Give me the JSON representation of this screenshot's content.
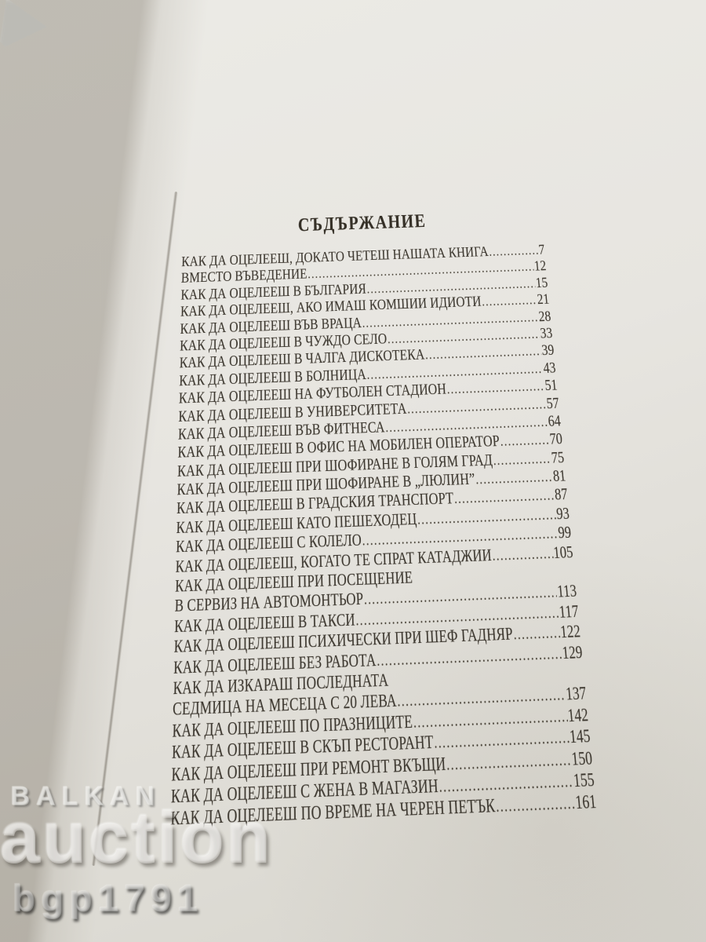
{
  "toc": {
    "title": "СЪДЪРЖАНИЕ",
    "entries": [
      {
        "label": "КАК ДА ОЦЕЛЕЕШ, ДОКАТО ЧЕТЕШ НАШАТА КНИГА",
        "page": "7"
      },
      {
        "label": "ВМЕСТО ВЪВЕДЕНИЕ",
        "page": "12"
      },
      {
        "label": "КАК ДА ОЦЕЛЕЕШ В БЪЛГАРИЯ",
        "page": "15"
      },
      {
        "label": "КАК ДА ОЦЕЛЕЕШ, АКО ИМАШ КОМШИИ ИДИОТИ",
        "page": "21"
      },
      {
        "label": "КАК ДА ОЦЕЛЕЕШ ВЪВ ВРАЦА",
        "page": "28"
      },
      {
        "label": "КАК ДА ОЦЕЛЕЕШ В ЧУЖДО СЕЛО",
        "page": "33"
      },
      {
        "label": "КАК ДА ОЦЕЛЕЕШ В ЧАЛГА ДИСКОТЕКА",
        "page": "39"
      },
      {
        "label": "КАК ДА ОЦЕЛЕЕШ В БОЛНИЦА",
        "page": "43"
      },
      {
        "label": "КАК ДА ОЦЕЛЕЕШ НА ФУТБОЛЕН СТАДИОН",
        "page": "51"
      },
      {
        "label": "КАК ДА ОЦЕЛЕЕШ В УНИВЕРСИТЕТА",
        "page": "57"
      },
      {
        "label": "КАК ДА ОЦЕЛЕЕШ ВЪВ ФИТНЕСА",
        "page": "64"
      },
      {
        "label": "КАК ДА ОЦЕЛЕЕШ В ОФИС НА МОБИЛЕН ОПЕРАТОР",
        "page": "70"
      },
      {
        "label": "КАК ДА ОЦЕЛЕЕШ ПРИ ШОФИРАНЕ В ГОЛЯМ ГРАД",
        "page": "75"
      },
      {
        "label": "КАК ДА ОЦЕЛЕЕШ ПРИ ШОФИРАНЕ В „ЛЮЛИН”",
        "page": "81"
      },
      {
        "label": "КАК ДА ОЦЕЛЕЕШ В ГРАДСКИЯ ТРАНСПОРТ",
        "page": "87"
      },
      {
        "label": "КАК ДА ОЦЕЛЕЕШ КАТО ПЕШЕХОДЕЦ",
        "page": "93"
      },
      {
        "label": "КАК ДА ОЦЕЛЕЕШ С КОЛЕЛО",
        "page": "99"
      },
      {
        "label": "КАК ДА ОЦЕЛЕЕШ, КОГАТО ТЕ СПРАТ КАТАДЖИИ",
        "page": "105"
      },
      {
        "label": "КАК ДА ОЦЕЛЕЕШ ПРИ ПОСЕЩЕНИЕ",
        "page": ""
      },
      {
        "label": "В СЕРВИЗ НА АВТОМОНТЬОР",
        "page": "113"
      },
      {
        "label": "КАК ДА ОЦЕЛЕЕШ В ТАКСИ",
        "page": "117"
      },
      {
        "label": "КАК ДА ОЦЕЛЕЕШ ПСИХИЧЕСКИ ПРИ ШЕФ ГАДНЯР",
        "page": "122"
      },
      {
        "label": "КАК ДА ОЦЕЛЕЕШ БЕЗ РАБОТА",
        "page": "129"
      },
      {
        "label": "КАК ДА ИЗКАРАШ ПОСЛЕДНАТА",
        "page": ""
      },
      {
        "label": "СЕДМИЦА НА МЕСЕЦА С 20 ЛЕВА",
        "page": "137"
      },
      {
        "label": "КАК ДА ОЦЕЛЕЕШ ПО ПРАЗНИЦИТЕ",
        "page": "142"
      },
      {
        "label": "КАК ДА ОЦЕЛЕЕШ В СКЪП РЕСТОРАНТ",
        "page": "145"
      },
      {
        "label": "КАК ДА ОЦЕЛЕЕШ ПРИ РЕМОНТ ВКЪЩИ",
        "page": "150"
      },
      {
        "label": "КАК ДА ОЦЕЛЕЕШ С ЖЕНА В МАГАЗИН",
        "page": "155"
      },
      {
        "label": "КАК ДА ОЦЕЛЕЕШ ПО ВРЕМЕ НА ЧЕРЕН ПЕТЪК",
        "page": "161"
      }
    ]
  },
  "watermark": {
    "brand_top": "BALKAN",
    "brand_main": "auction",
    "seller_id": "bgp1791",
    "play_icon": "play-triangle"
  },
  "colors": {
    "fabric_blue": "#4a6480",
    "page_paper": "#e7e5e0",
    "ink": "#3c372f",
    "shadow_black": "#0a0b0d"
  }
}
